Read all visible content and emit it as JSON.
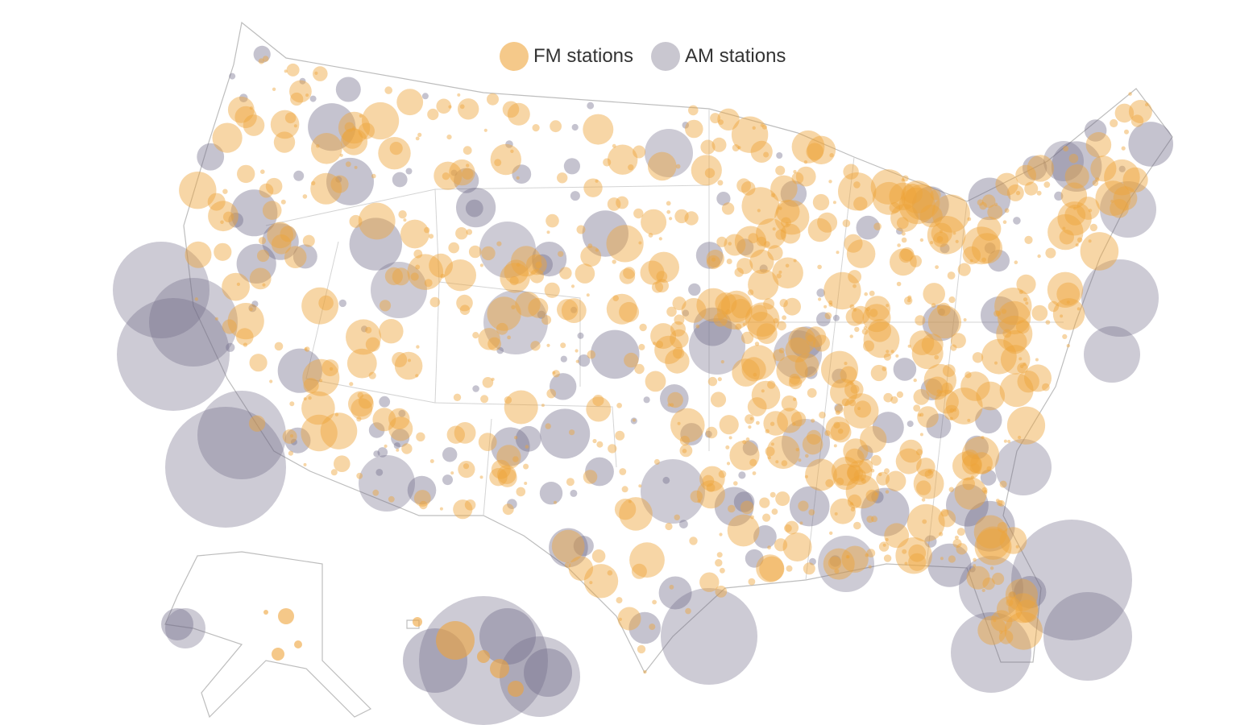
{
  "legend": {
    "items": [
      {
        "label": "FM stations",
        "color": "#f5c98a"
      },
      {
        "label": "AM stations",
        "color": "#c9c7d0"
      }
    ]
  },
  "colors": {
    "fm": "#eea43a",
    "am": "#6f6a88",
    "borders": "#bdbdbd"
  },
  "regions": [
    "contiguous-us",
    "alaska",
    "hawaii"
  ]
}
